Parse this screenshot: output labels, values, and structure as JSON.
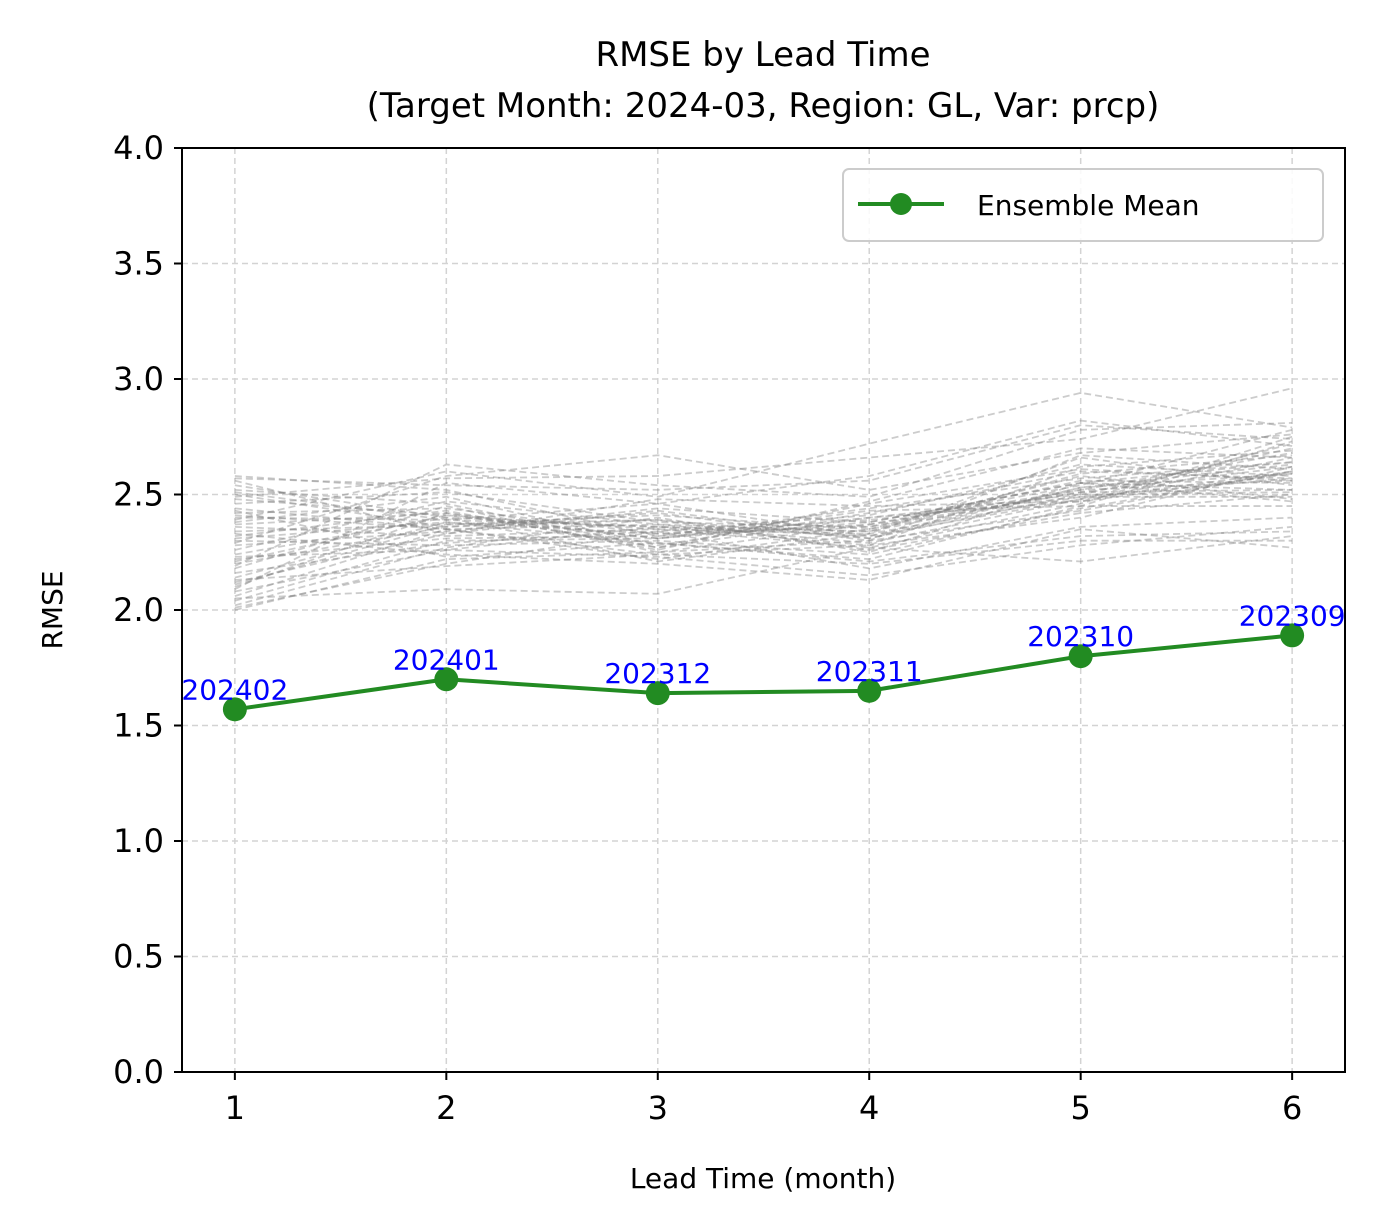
{
  "chart_data": {
    "type": "line",
    "title_line1": "RMSE by Lead Time",
    "title_line2": "(Target Month: 2024-03, Region: GL, Var: prcp)",
    "xlabel": "Lead Time (month)",
    "ylabel": "RMSE",
    "xlim": [
      0.75,
      6.25
    ],
    "ylim": [
      0,
      4
    ],
    "xticks": [
      1,
      2,
      3,
      4,
      5,
      6
    ],
    "yticks": [
      0.0,
      0.5,
      1.0,
      1.5,
      2.0,
      2.5,
      3.0,
      3.5,
      4.0
    ],
    "ytick_labels": [
      "0.0",
      "0.5",
      "1.0",
      "1.5",
      "2.0",
      "2.5",
      "3.0",
      "3.5",
      "4.0"
    ],
    "grid": true,
    "legend_position": "top-right",
    "colors": {
      "ensemble_mean": "#228b22",
      "members": "#808080",
      "annotations": "#0000ff",
      "grid": "#d3d3d3"
    },
    "series": [
      {
        "name": "Ensemble Mean",
        "x": [
          1,
          2,
          3,
          4,
          5,
          6
        ],
        "values": [
          1.57,
          1.7,
          1.64,
          1.65,
          1.8,
          1.89
        ]
      }
    ],
    "point_annotations": [
      "202402",
      "202401",
      "202312",
      "202311",
      "202310",
      "202309"
    ],
    "member_series": [
      [
        2.0,
        2.22,
        2.25,
        2.3,
        2.43,
        2.6
      ],
      [
        2.02,
        2.27,
        2.4,
        2.25,
        2.55,
        2.52
      ],
      [
        2.04,
        2.3,
        2.31,
        2.4,
        2.47,
        2.66
      ],
      [
        2.06,
        2.35,
        2.22,
        2.35,
        2.58,
        2.48
      ],
      [
        2.08,
        2.26,
        2.36,
        2.28,
        2.4,
        2.62
      ],
      [
        2.1,
        2.42,
        2.27,
        2.46,
        2.61,
        2.56
      ],
      [
        2.12,
        2.33,
        2.43,
        2.31,
        2.5,
        2.7
      ],
      [
        2.14,
        2.38,
        2.29,
        2.22,
        2.45,
        2.45
      ],
      [
        2.16,
        2.29,
        2.34,
        2.41,
        2.63,
        2.58
      ],
      [
        2.18,
        2.45,
        2.25,
        2.37,
        2.52,
        2.68
      ],
      [
        2.2,
        2.36,
        2.39,
        2.26,
        2.42,
        2.5
      ],
      [
        2.22,
        2.31,
        2.32,
        2.44,
        2.57,
        2.64
      ],
      [
        2.24,
        2.4,
        2.21,
        2.33,
        2.66,
        2.54
      ],
      [
        2.26,
        2.47,
        2.37,
        2.29,
        2.48,
        2.72
      ],
      [
        2.28,
        2.34,
        2.44,
        2.38,
        2.55,
        2.47
      ],
      [
        2.3,
        2.28,
        2.3,
        2.24,
        2.44,
        2.6
      ],
      [
        2.32,
        2.43,
        2.26,
        2.47,
        2.7,
        2.66
      ],
      [
        2.34,
        2.37,
        2.41,
        2.35,
        2.51,
        2.52
      ],
      [
        2.36,
        2.32,
        2.35,
        2.27,
        2.46,
        2.75
      ],
      [
        2.38,
        2.49,
        2.28,
        2.42,
        2.6,
        2.57
      ],
      [
        2.4,
        2.39,
        2.46,
        2.32,
        2.53,
        2.63
      ],
      [
        2.42,
        2.44,
        2.33,
        2.39,
        2.49,
        2.49
      ],
      [
        2.44,
        2.35,
        2.24,
        2.28,
        2.62,
        2.69
      ],
      [
        2.46,
        2.51,
        2.38,
        2.36,
        2.56,
        2.55
      ],
      [
        2.48,
        2.41,
        2.31,
        2.43,
        2.45,
        2.73
      ],
      [
        2.5,
        2.36,
        2.42,
        2.3,
        2.67,
        2.61
      ],
      [
        2.52,
        2.46,
        2.27,
        2.4,
        2.5,
        2.51
      ],
      [
        2.54,
        2.4,
        2.36,
        2.34,
        2.59,
        2.67
      ],
      [
        2.56,
        2.33,
        2.48,
        2.45,
        2.47,
        2.59
      ],
      [
        2.58,
        2.52,
        2.32,
        2.37,
        2.54,
        2.78
      ],
      [
        2.01,
        2.2,
        2.34,
        2.18,
        2.36,
        2.4
      ],
      [
        2.05,
        2.09,
        2.07,
        2.27,
        2.21,
        2.32
      ],
      [
        2.13,
        2.19,
        2.24,
        2.2,
        2.3,
        2.3
      ],
      [
        2.23,
        2.26,
        2.23,
        2.15,
        2.28,
        2.36
      ],
      [
        2.33,
        2.24,
        2.2,
        2.13,
        2.35,
        2.27
      ],
      [
        2.43,
        2.23,
        2.29,
        2.21,
        2.32,
        2.34
      ],
      [
        2.09,
        2.55,
        2.46,
        2.58,
        2.82,
        2.71
      ],
      [
        2.19,
        2.63,
        2.54,
        2.49,
        2.78,
        2.81
      ],
      [
        2.29,
        2.58,
        2.67,
        2.52,
        2.68,
        2.76
      ],
      [
        2.39,
        2.6,
        2.49,
        2.72,
        2.94,
        2.79
      ],
      [
        2.49,
        2.57,
        2.58,
        2.66,
        2.74,
        2.96
      ],
      [
        2.57,
        2.54,
        2.52,
        2.56,
        2.8,
        2.74
      ],
      [
        2.11,
        2.37,
        2.39,
        2.31,
        2.53,
        2.59
      ],
      [
        2.21,
        2.41,
        2.35,
        2.33,
        2.49,
        2.57
      ],
      [
        2.31,
        2.38,
        2.33,
        2.36,
        2.51,
        2.62
      ],
      [
        2.41,
        2.35,
        2.37,
        2.34,
        2.52,
        2.56
      ],
      [
        2.51,
        2.39,
        2.36,
        2.32,
        2.48,
        2.6
      ],
      [
        2.37,
        2.42,
        2.31,
        2.38,
        2.55,
        2.64
      ]
    ]
  }
}
